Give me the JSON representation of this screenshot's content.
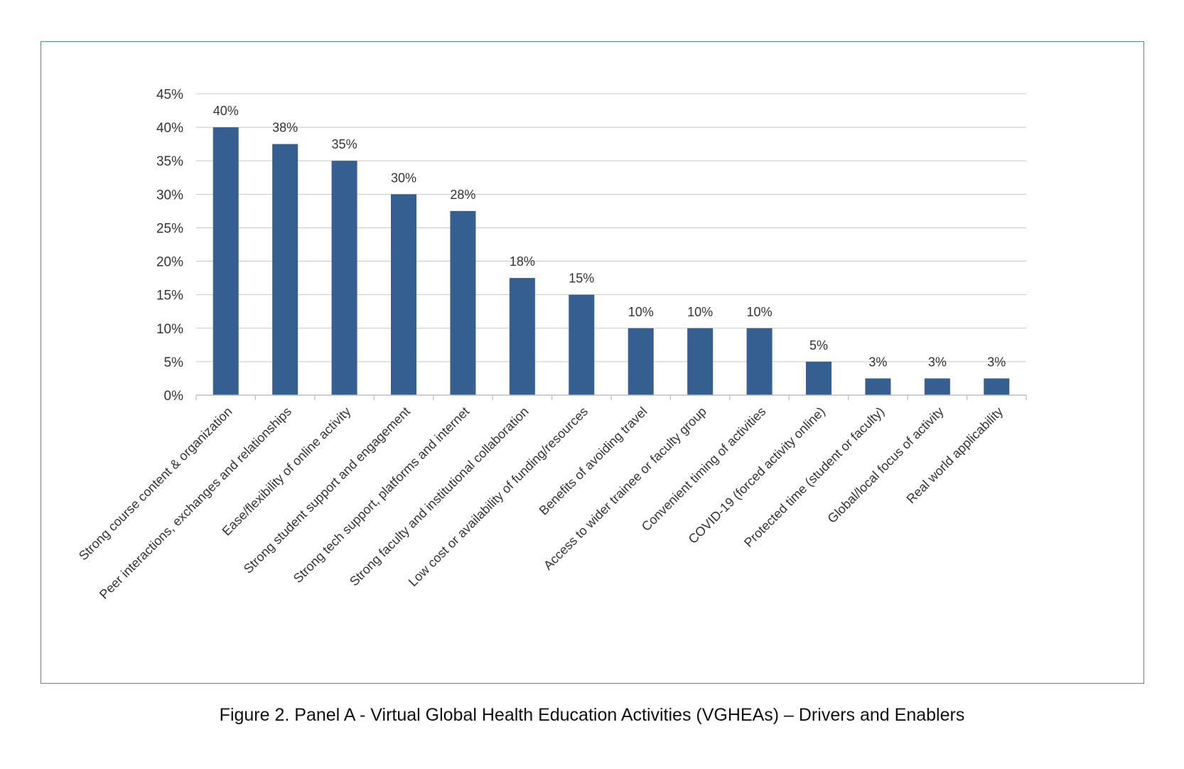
{
  "caption": "Figure 2. Panel A - Virtual Global Health Education Activities (VGHEAs) – Drivers and Enablers",
  "chart_data": {
    "type": "bar",
    "title": "",
    "xlabel": "",
    "ylabel": "",
    "ylim": [
      0,
      45
    ],
    "yticks": [
      "0%",
      "5%",
      "10%",
      "15%",
      "20%",
      "25%",
      "30%",
      "35%",
      "40%",
      "45%"
    ],
    "grid": true,
    "bar_color": "#355e91",
    "categories": [
      "Strong course content & organization",
      "Peer interactions, exchanges and relationships",
      "Ease/flexibility of online activity",
      "Strong student support and engagement",
      "Strong tech support, platforms and internet",
      "Strong faculty and institutional collaboration",
      "Low cost or availability of funding/resources",
      "Benefits of avoiding travel",
      "Access to wider trainee or faculty group",
      "Convenient timing of activities",
      "COVID-19 (forced activity online)",
      "Protected time (student or faculty)",
      "Global/local focus of activity",
      "Real world applicability"
    ],
    "values": [
      40,
      37.5,
      35,
      30,
      27.5,
      17.5,
      15,
      10,
      10,
      10,
      5,
      2.5,
      2.5,
      2.5
    ],
    "data_labels": [
      "40%",
      "38%",
      "35%",
      "30%",
      "28%",
      "18%",
      "15%",
      "10%",
      "10%",
      "10%",
      "5%",
      "3%",
      "3%",
      "3%"
    ]
  }
}
